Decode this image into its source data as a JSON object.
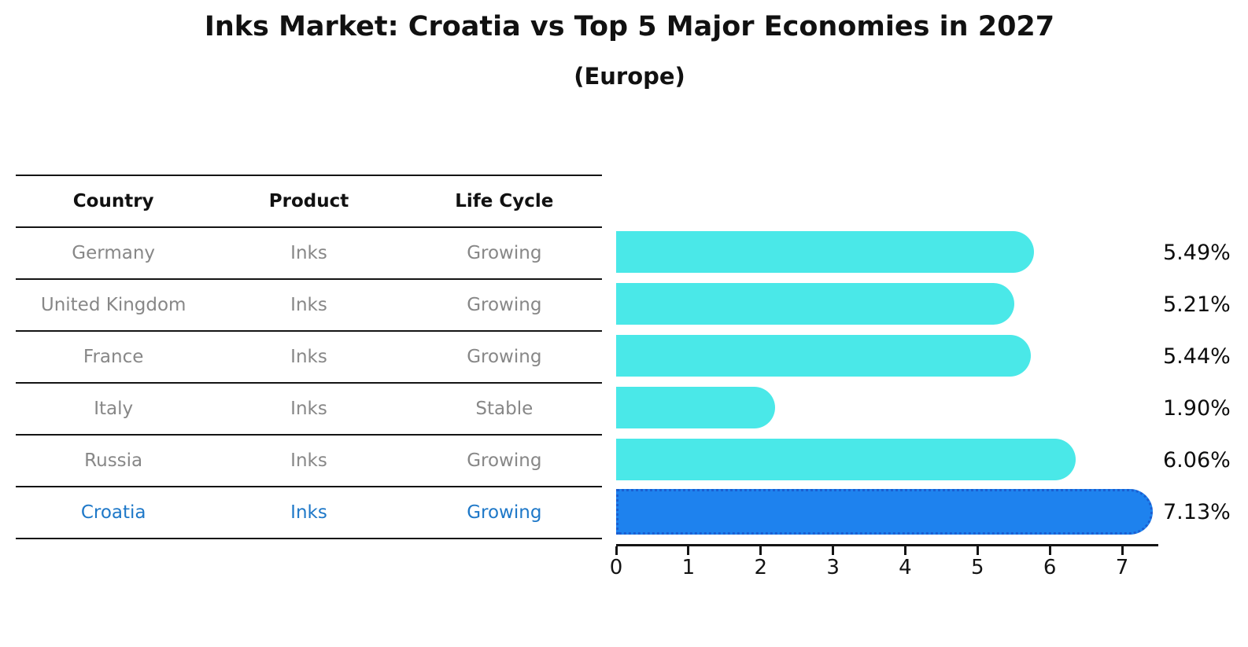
{
  "title": "Inks Market: Croatia vs Top 5 Major Economies in 2027",
  "subtitle": "(Europe)",
  "table": {
    "headers": [
      "Country",
      "Product",
      "Life Cycle"
    ],
    "rows": [
      {
        "country": "Germany",
        "product": "Inks",
        "life_cycle": "Growing",
        "highlight": false
      },
      {
        "country": "United Kingdom",
        "product": "Inks",
        "life_cycle": "Growing",
        "highlight": false
      },
      {
        "country": "France",
        "product": "Inks",
        "life_cycle": "Growing",
        "highlight": false
      },
      {
        "country": "Italy",
        "product": "Inks",
        "life_cycle": "Stable",
        "highlight": false
      },
      {
        "country": "Russia",
        "product": "Inks",
        "life_cycle": "Growing",
        "highlight": false
      },
      {
        "country": "Croatia",
        "product": "Inks",
        "life_cycle": "Growing",
        "highlight": true
      }
    ]
  },
  "chart_data": {
    "type": "bar",
    "orientation": "horizontal",
    "title": "Inks Market: Croatia vs Top 5 Major Economies in 2027",
    "subtitle": "(Europe)",
    "categories": [
      "Germany",
      "United Kingdom",
      "France",
      "Italy",
      "Russia",
      "Croatia"
    ],
    "values": [
      5.49,
      5.21,
      5.44,
      1.9,
      6.06,
      7.13
    ],
    "value_labels": [
      "5.49%",
      "5.21%",
      "5.44%",
      "1.90%",
      "6.06%",
      "7.13%"
    ],
    "unit": "percent",
    "highlight_index": 5,
    "xlim": [
      0,
      7.5
    ],
    "xticks": [
      "0",
      "1",
      "2",
      "3",
      "4",
      "5",
      "6",
      "7"
    ],
    "grid": false,
    "legend": false,
    "bar_color": "#4ae8e8",
    "highlight_bar_color": "#1e82ee",
    "highlight_border_color": "#1b5ed1",
    "highlight_text_color": "#1e78c8"
  },
  "colors": {
    "background": "#ffffff",
    "table_text": "#878787",
    "header_text": "#111111",
    "value_text": "#0d0d0d",
    "line": "#141414"
  }
}
